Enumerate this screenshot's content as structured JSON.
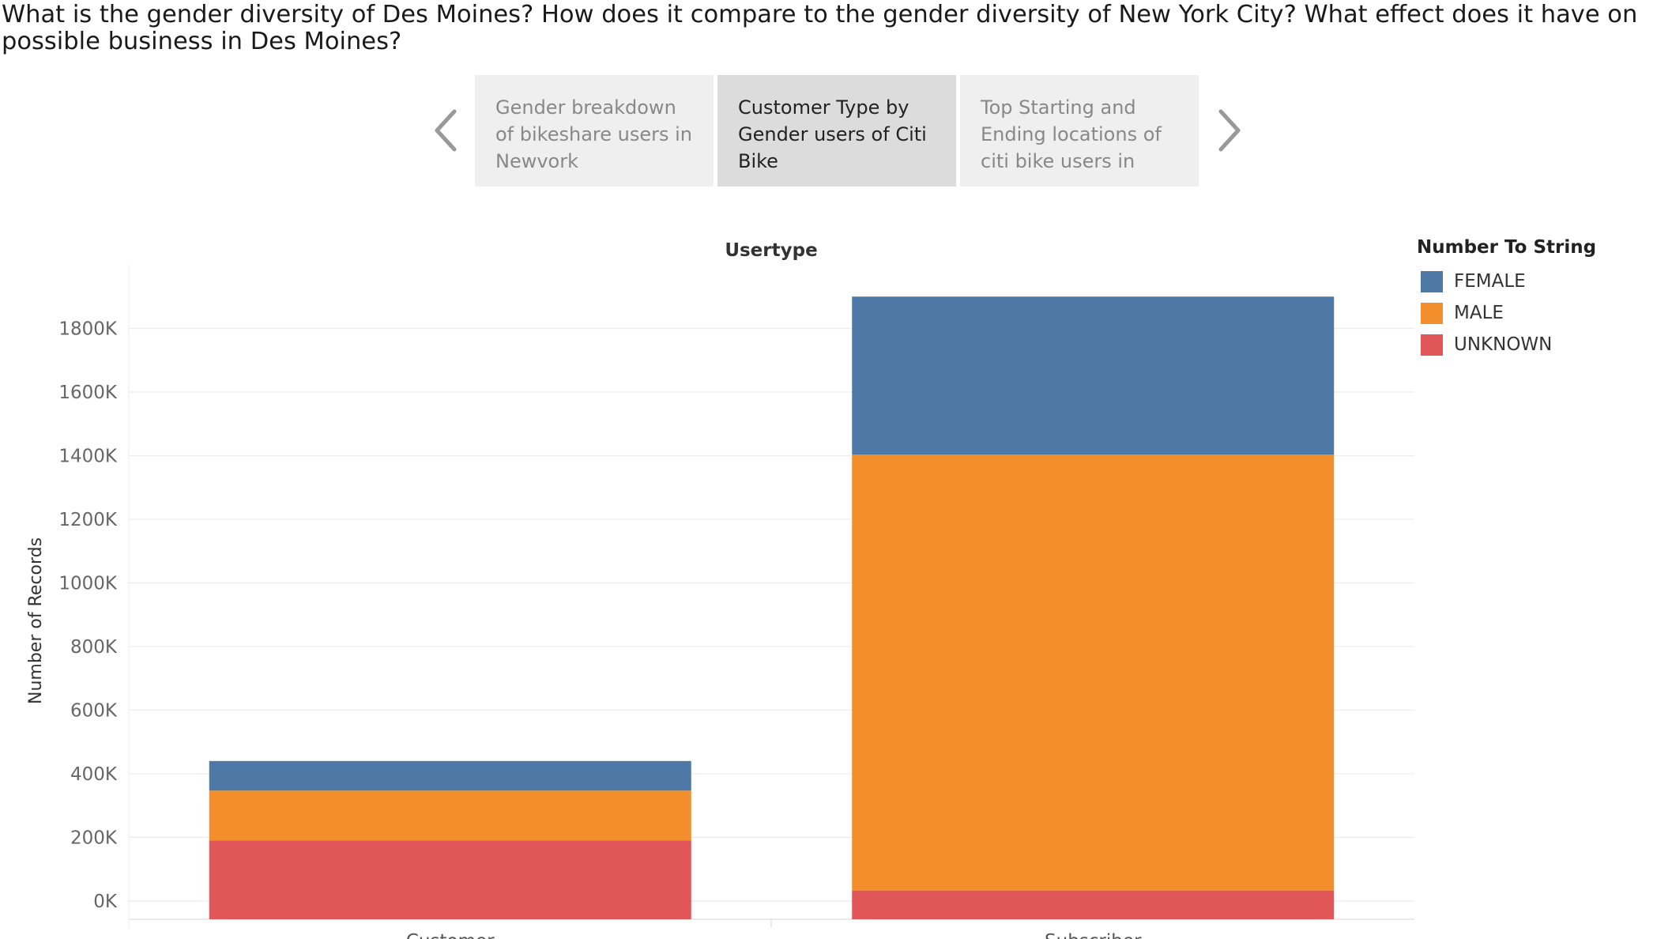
{
  "story": {
    "title": "What is the gender diversity of Des Moines? How does it compare to the gender diversity of New York City? What effect does it have on possible business in Des Moines?",
    "points": [
      {
        "label": "Gender breakdown of bikeshare users in Newvork",
        "active": false
      },
      {
        "label": "Customer Type by Gender users of Citi Bike",
        "active": true
      },
      {
        "label": "Top Starting and Ending locations of citi bike users in",
        "active": false
      }
    ],
    "prev_icon": "chevron-left-icon",
    "next_icon": "chevron-right-icon"
  },
  "legend": {
    "title": "Number To String",
    "items": [
      {
        "label": "FEMALE",
        "color": "#4e79a7"
      },
      {
        "label": "MALE",
        "color": "#f28e2b"
      },
      {
        "label": "UNKNOWN",
        "color": "#e15759"
      }
    ]
  },
  "chart_data": {
    "type": "bar",
    "stacked": true,
    "title": "Usertype",
    "xlabel": "",
    "ylabel": "Number of Records",
    "categories": [
      "Customer",
      "Subscriber"
    ],
    "series": [
      {
        "name": "UNKNOWN",
        "color": "#e15759",
        "values": [
          190000,
          33000
        ]
      },
      {
        "name": "MALE",
        "color": "#f28e2b",
        "values": [
          157000,
          1370000
        ]
      },
      {
        "name": "FEMALE",
        "color": "#4e79a7",
        "values": [
          93000,
          497000
        ]
      }
    ],
    "ylim": [
      -40000,
      2000000
    ],
    "yticks": [
      0,
      200000,
      400000,
      600000,
      800000,
      1000000,
      1200000,
      1400000,
      1600000,
      1800000
    ],
    "ytick_labels": [
      "0K",
      "200K",
      "400K",
      "600K",
      "800K",
      "1000K",
      "1200K",
      "1400K",
      "1600K",
      "1800K"
    ],
    "grid": true,
    "legend": "right"
  }
}
